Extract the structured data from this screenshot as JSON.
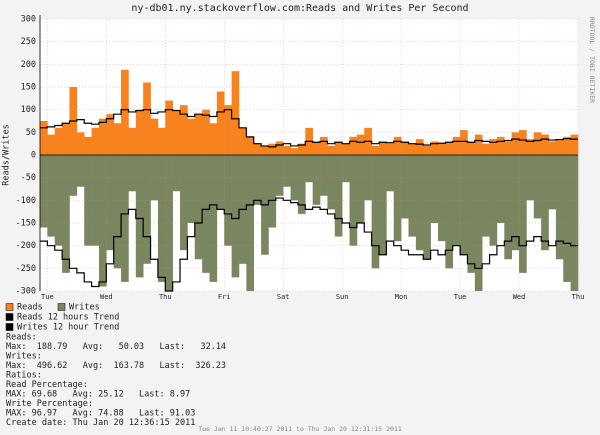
{
  "chart_data": {
    "type": "bar",
    "title": "ny-db01.ny.stackoverflow.com:Reads and Writes Per Second",
    "y_label": "Reads/Writes",
    "watermark": "RRDTOOL / TOBI OETIKER",
    "time_range": "Tue Jan 11 10:40:27 2011 to Thu Jan 20 12:31:15 2011",
    "xlim": [
      0,
      73
    ],
    "xticks": [
      {
        "value": 1,
        "label": "Tue"
      },
      {
        "value": 9,
        "label": "Wed"
      },
      {
        "value": 17,
        "label": "Thu"
      },
      {
        "value": 25,
        "label": "Fri"
      },
      {
        "value": 33,
        "label": "Sat"
      },
      {
        "value": 41,
        "label": "Sun"
      },
      {
        "value": 49,
        "label": "Mon"
      },
      {
        "value": 57,
        "label": "Tue"
      },
      {
        "value": 65,
        "label": "Wed"
      },
      {
        "value": 73,
        "label": "Thu"
      }
    ],
    "ylim": [
      -300,
      300
    ],
    "yticks": [
      -300,
      -250,
      -200,
      -150,
      -100,
      -50,
      0,
      50,
      100,
      150,
      200,
      250,
      300
    ],
    "grid": true,
    "series": [
      {
        "name": "Reads",
        "color": "#f7821e",
        "kind": "bar",
        "values": [
          75,
          45,
          60,
          70,
          150,
          50,
          40,
          60,
          80,
          90,
          70,
          188,
          60,
          100,
          160,
          80,
          60,
          120,
          100,
          110,
          80,
          90,
          100,
          70,
          140,
          110,
          185,
          60,
          40,
          25,
          20,
          25,
          30,
          20,
          15,
          25,
          60,
          30,
          40,
          20,
          30,
          25,
          40,
          45,
          60,
          20,
          30,
          25,
          40,
          30,
          25,
          35,
          20,
          30,
          25,
          30,
          40,
          55,
          30,
          45,
          25,
          35,
          40,
          30,
          50,
          55,
          35,
          50,
          45,
          30,
          35,
          40,
          45
        ]
      },
      {
        "name": "Writes",
        "color": "#7a8660",
        "kind": "bar",
        "values": [
          -160,
          -180,
          -200,
          -260,
          -90,
          -70,
          -200,
          -200,
          -290,
          -210,
          -250,
          -280,
          -80,
          -270,
          -240,
          -100,
          -280,
          -300,
          -80,
          -210,
          -150,
          -230,
          -260,
          -280,
          -120,
          -200,
          -270,
          -240,
          -300,
          -110,
          -220,
          -160,
          -90,
          -70,
          -100,
          -130,
          -60,
          -110,
          -90,
          -120,
          -180,
          -60,
          -200,
          -150,
          -100,
          -250,
          -220,
          -80,
          -190,
          -140,
          -180,
          -210,
          -230,
          -150,
          -190,
          -250,
          -200,
          -220,
          -260,
          -300,
          -180,
          -200,
          -150,
          -230,
          -210,
          -260,
          -100,
          -140,
          -210,
          -120,
          -230,
          -280,
          -300
        ]
      },
      {
        "name": "Reads 12 hours Trend",
        "color": "#000000",
        "kind": "line",
        "values": [
          60,
          62,
          65,
          70,
          75,
          78,
          70,
          68,
          72,
          80,
          90,
          100,
          95,
          98,
          100,
          92,
          95,
          100,
          98,
          90,
          85,
          90,
          88,
          85,
          95,
          100,
          80,
          60,
          40,
          25,
          20,
          18,
          22,
          25,
          20,
          22,
          30,
          28,
          30,
          25,
          28,
          25,
          30,
          28,
          30,
          25,
          28,
          27,
          30,
          28,
          25,
          24,
          22,
          25,
          26,
          28,
          30,
          30,
          28,
          32,
          30,
          28,
          30,
          32,
          35,
          33,
          30,
          32,
          35,
          33,
          34,
          36,
          35
        ]
      },
      {
        "name": "Writes 12 hour Trend",
        "color": "#000000",
        "kind": "line",
        "values": [
          -190,
          -200,
          -210,
          -230,
          -250,
          -260,
          -280,
          -290,
          -280,
          -240,
          -180,
          -130,
          -120,
          -140,
          -180,
          -230,
          -270,
          -300,
          -280,
          -230,
          -180,
          -150,
          -120,
          -110,
          -120,
          -130,
          -140,
          -120,
          -110,
          -100,
          -110,
          -100,
          -95,
          -100,
          -105,
          -110,
          -120,
          -115,
          -120,
          -130,
          -140,
          -150,
          -160,
          -150,
          -170,
          -200,
          -220,
          -190,
          -200,
          -210,
          -220,
          -220,
          -230,
          -210,
          -220,
          -210,
          -200,
          -220,
          -240,
          -250,
          -240,
          -220,
          -200,
          -190,
          -180,
          -200,
          -190,
          -180,
          -190,
          -200,
          -190,
          -195,
          -200
        ]
      }
    ],
    "stats": [
      "Reads:",
      "Max:  188.79   Avg:   50.03   Last:   32.14",
      "Writes:",
      "Max:  496.62   Avg:  163.78   Last:  326.23",
      "Ratios:",
      "Read Percentage:",
      "MAX: 69.68   Avg: 25.12   Last: 8.97",
      "Write Percentage:",
      "MAX: 96.97   Avg: 74.88   Last: 91.03",
      "Create date: Thu Jan 20 12:36:15 2011"
    ]
  }
}
